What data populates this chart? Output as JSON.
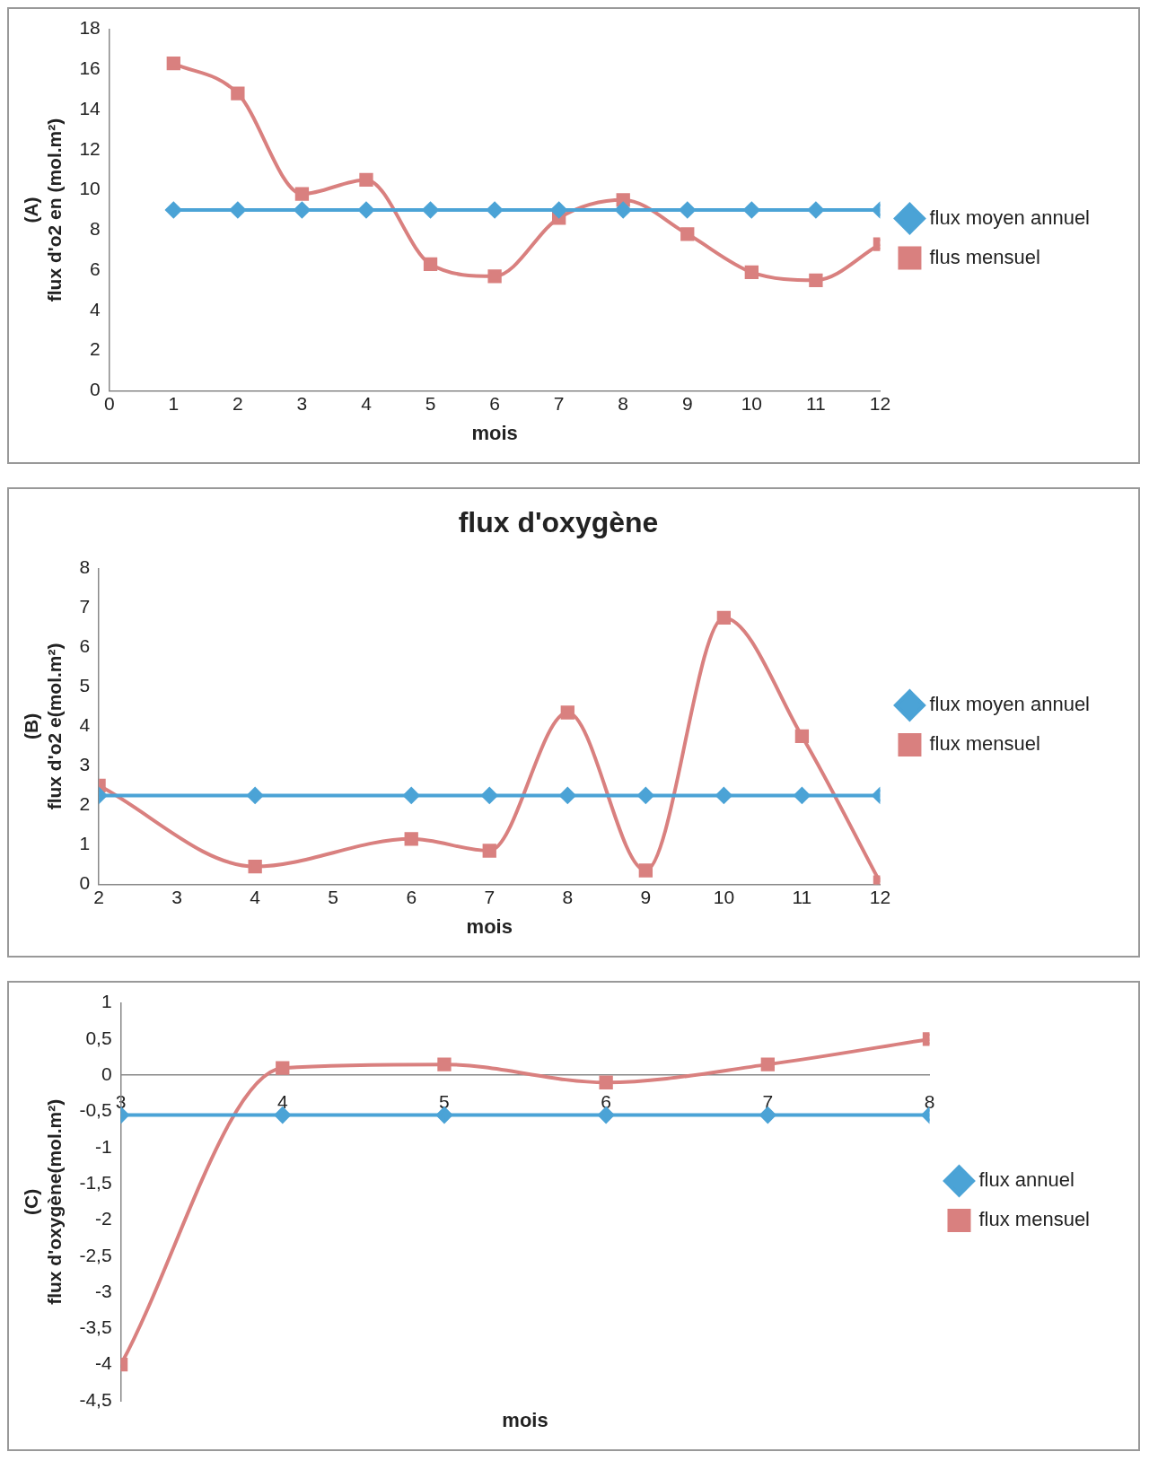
{
  "chart_data": [
    {
      "type": "line",
      "ylabel": "(A)\nflux d'o2 en (mol.m²)",
      "xlabel": "mois",
      "x": [
        1,
        2,
        3,
        4,
        5,
        6,
        7,
        8,
        9,
        10,
        11,
        12
      ],
      "xlim": [
        0,
        12
      ],
      "xticks": [
        0,
        1,
        2,
        3,
        4,
        5,
        6,
        7,
        8,
        9,
        10,
        11,
        12
      ],
      "ylim": [
        0,
        18
      ],
      "yticks": [
        0,
        2,
        4,
        6,
        8,
        10,
        12,
        14,
        16,
        18
      ],
      "legend": "right",
      "series": [
        {
          "name": "flux moyen annuel",
          "color": "#4ba3d6",
          "marker": "diamond",
          "values": [
            9,
            9,
            9,
            9,
            9,
            9,
            9,
            9,
            9,
            9,
            9,
            9
          ]
        },
        {
          "name": "flus mensuel",
          "color": "#d9807f",
          "marker": "square",
          "values": [
            16.3,
            14.8,
            9.8,
            10.5,
            6.3,
            5.7,
            8.6,
            9.5,
            7.8,
            5.9,
            5.5,
            7.3
          ]
        }
      ]
    },
    {
      "type": "line",
      "title": "flux d'oxygène",
      "ylabel": "(B)\nflux d'o2 e(mol.m²)",
      "xlabel": "mois",
      "x": [
        2,
        4,
        6,
        7,
        8,
        9,
        10,
        11,
        12
      ],
      "xlim": [
        2,
        12
      ],
      "xticks": [
        2,
        3,
        4,
        5,
        6,
        7,
        8,
        9,
        10,
        11,
        12
      ],
      "ylim": [
        0,
        8
      ],
      "yticks": [
        0,
        1,
        2,
        3,
        4,
        5,
        6,
        7,
        8
      ],
      "legend": "right",
      "series": [
        {
          "name": "flux moyen annuel",
          "color": "#4ba3d6",
          "marker": "diamond",
          "values": [
            2.25,
            2.25,
            2.25,
            2.25,
            2.25,
            2.25,
            2.25,
            2.25,
            2.25
          ]
        },
        {
          "name": "flux mensuel",
          "color": "#d9807f",
          "marker": "square",
          "values": [
            2.5,
            0.45,
            1.15,
            0.85,
            4.35,
            0.35,
            6.75,
            3.75,
            0.05
          ]
        }
      ]
    },
    {
      "type": "line",
      "ylabel": "(C)\nflux d'oxygène(mol.m²)",
      "xlabel": "mois",
      "x": [
        3,
        4,
        5,
        6,
        7,
        8
      ],
      "xlim": [
        3,
        8
      ],
      "xticks": [
        3,
        4,
        5,
        6,
        7,
        8
      ],
      "ylim": [
        -4.5,
        1
      ],
      "yticks": [
        {
          "value": -4.5,
          "label": "-4,5"
        },
        {
          "value": -4,
          "label": "-4"
        },
        {
          "value": -3.5,
          "label": "-3,5"
        },
        {
          "value": -3,
          "label": "-3"
        },
        {
          "value": -2.5,
          "label": "-2,5"
        },
        {
          "value": -2,
          "label": "-2"
        },
        {
          "value": -1.5,
          "label": "-1,5"
        },
        {
          "value": -1,
          "label": "-1"
        },
        {
          "value": -0.5,
          "label": "-0,5"
        },
        {
          "value": 0,
          "label": "0"
        },
        {
          "value": 0.5,
          "label": "0,5"
        },
        {
          "value": 1,
          "label": "1"
        }
      ],
      "legend": "right",
      "series": [
        {
          "name": "flux annuel",
          "color": "#4ba3d6",
          "marker": "diamond",
          "values": [
            -0.55,
            -0.55,
            -0.55,
            -0.55,
            -0.55,
            -0.55
          ]
        },
        {
          "name": "flux mensuel",
          "color": "#d9807f",
          "marker": "square",
          "values": [
            -4,
            0.1,
            0.15,
            -0.1,
            0.15,
            0.5
          ]
        }
      ]
    }
  ]
}
